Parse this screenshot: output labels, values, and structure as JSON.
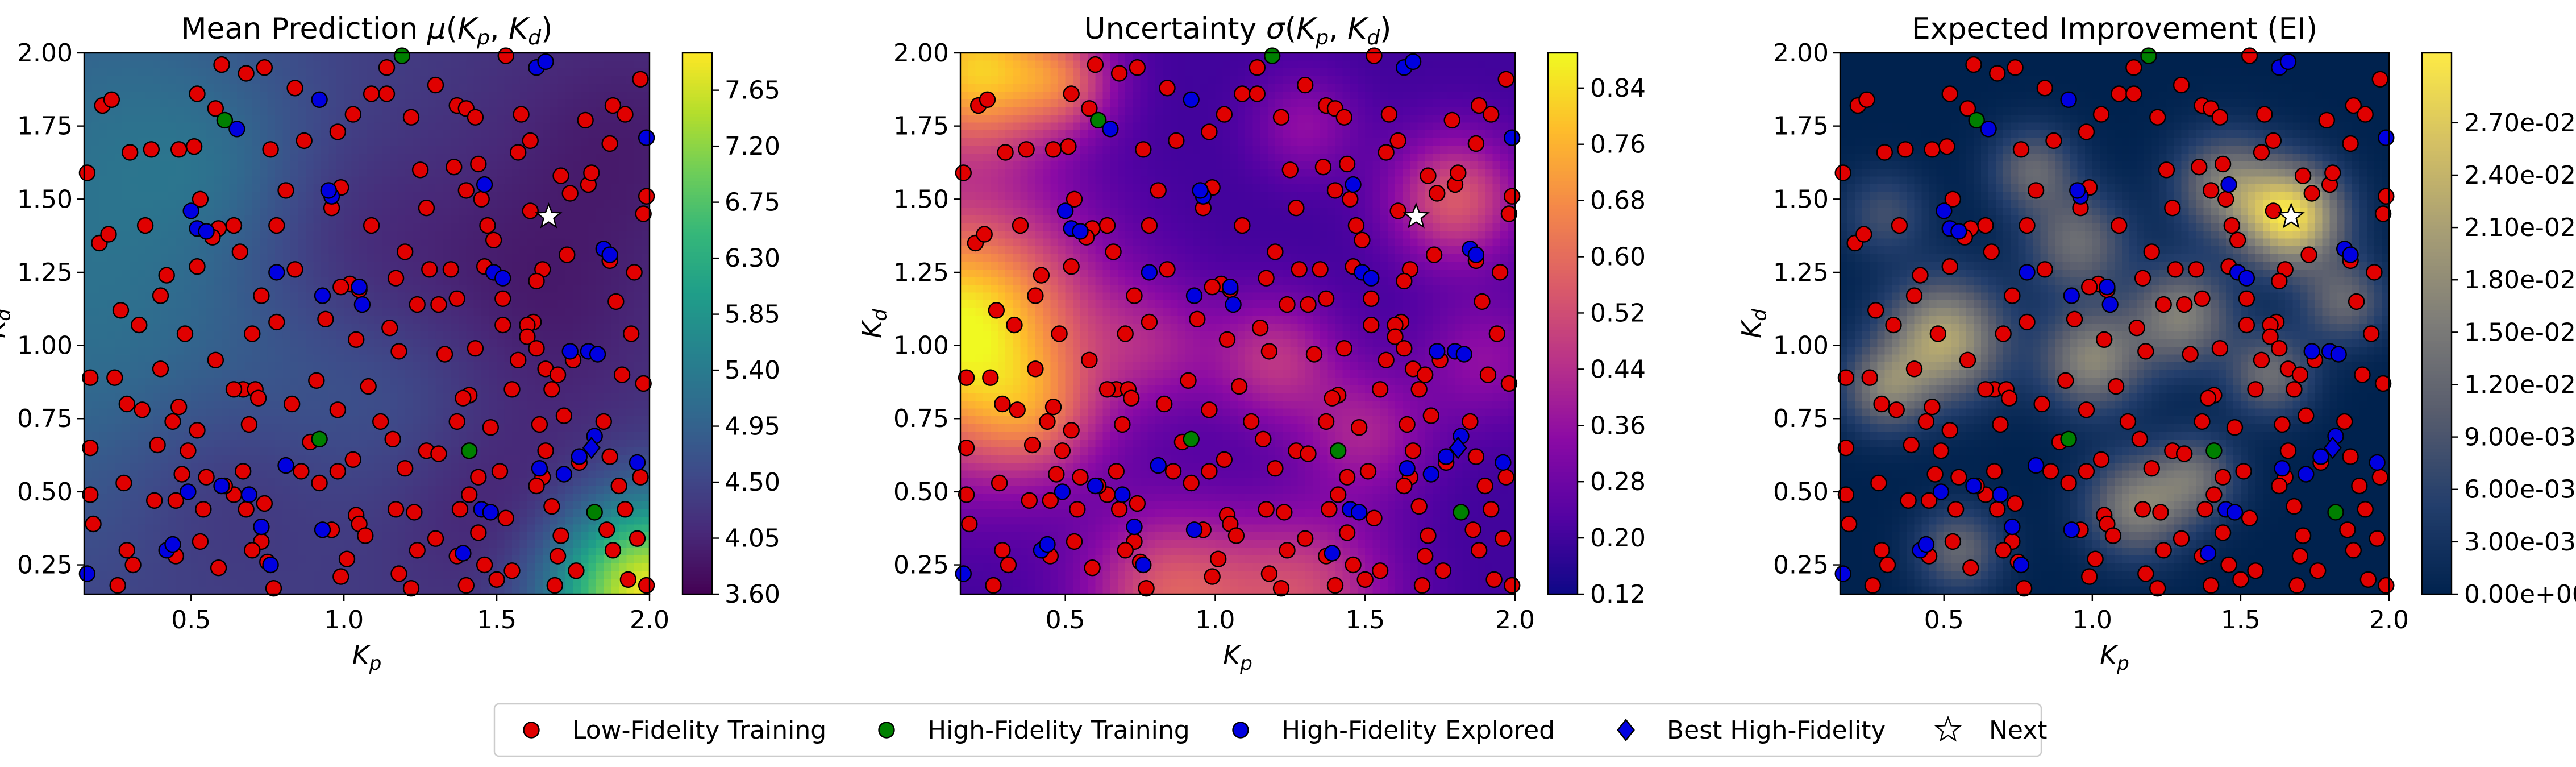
{
  "figure": {
    "legend_placement": "bottom-center"
  },
  "legend": [
    {
      "label": "Low-Fidelity Training",
      "marker": "circle",
      "color": "#e00000"
    },
    {
      "label": "High-Fidelity Training",
      "marker": "circle",
      "color": "#008000"
    },
    {
      "label": "High-Fidelity Explored",
      "marker": "circle",
      "color": "#0000e0"
    },
    {
      "label": "Best High-Fidelity",
      "marker": "diamond",
      "color": "#0000e0"
    },
    {
      "label": "Next",
      "marker": "star",
      "color": "#ffffff"
    }
  ],
  "points": {
    "low_fidelity": [
      [
        0.16,
        1.59
      ],
      [
        0.2,
        1.35
      ],
      [
        0.21,
        1.82
      ],
      [
        0.23,
        1.38
      ],
      [
        0.27,
        1.12
      ],
      [
        0.17,
        0.89
      ],
      [
        0.25,
        0.89
      ],
      [
        0.29,
        0.8
      ],
      [
        0.35,
        1.41
      ],
      [
        0.37,
        1.67
      ],
      [
        0.4,
        1.17
      ],
      [
        0.33,
        1.07
      ],
      [
        0.4,
        0.92
      ],
      [
        0.34,
        0.78
      ],
      [
        0.39,
        0.66
      ],
      [
        0.46,
        0.79
      ],
      [
        0.44,
        0.74
      ],
      [
        0.48,
        1.04
      ],
      [
        0.52,
        1.27
      ],
      [
        0.53,
        1.5
      ],
      [
        0.59,
        1.4
      ],
      [
        0.64,
        1.41
      ],
      [
        0.57,
        1.37
      ],
      [
        0.58,
        0.95
      ],
      [
        0.49,
        0.64
      ],
      [
        0.47,
        0.56
      ],
      [
        0.55,
        0.55
      ],
      [
        0.64,
        0.49
      ],
      [
        0.61,
        0.52
      ],
      [
        0.45,
        0.47
      ],
      [
        0.38,
        0.47
      ],
      [
        0.29,
        0.3
      ],
      [
        0.31,
        0.25
      ],
      [
        0.26,
        0.18
      ],
      [
        0.17,
        0.49
      ],
      [
        0.18,
        0.39
      ],
      [
        0.17,
        0.65
      ],
      [
        0.46,
        1.67
      ],
      [
        0.51,
        1.68
      ],
      [
        0.58,
        1.81
      ],
      [
        0.6,
        1.96
      ],
      [
        0.68,
        1.93
      ],
      [
        0.74,
        1.95
      ],
      [
        0.76,
        1.67
      ],
      [
        0.78,
        1.41
      ],
      [
        0.81,
        1.53
      ],
      [
        0.84,
        1.26
      ],
      [
        0.87,
        1.7
      ],
      [
        0.73,
        1.17
      ],
      [
        0.78,
        1.08
      ],
      [
        0.7,
        1.04
      ],
      [
        0.67,
        0.85
      ],
      [
        0.64,
        0.85
      ],
      [
        0.71,
        0.85
      ],
      [
        0.72,
        0.82
      ],
      [
        0.69,
        0.73
      ],
      [
        0.67,
        0.57
      ],
      [
        0.68,
        0.44
      ],
      [
        0.74,
        0.46
      ],
      [
        0.73,
        0.33
      ],
      [
        0.75,
        0.26
      ],
      [
        0.77,
        0.17
      ],
      [
        0.59,
        0.24
      ],
      [
        0.45,
        0.28
      ],
      [
        0.53,
        0.33
      ],
      [
        0.7,
        0.3
      ],
      [
        0.86,
        0.57
      ],
      [
        0.89,
        0.67
      ],
      [
        0.91,
        0.88
      ],
      [
        0.94,
        1.09
      ],
      [
        0.96,
        1.47
      ],
      [
        0.99,
        1.54
      ],
      [
        1.02,
        1.21
      ],
      [
        1.05,
        1.19
      ],
      [
        1.04,
        1.02
      ],
      [
        1.08,
        0.86
      ],
      [
        0.98,
        0.78
      ],
      [
        1.03,
        0.61
      ],
      [
        0.98,
        0.57
      ],
      [
        0.92,
        0.53
      ],
      [
        0.96,
        0.37
      ],
      [
        1.04,
        0.42
      ],
      [
        1.05,
        0.39
      ],
      [
        1.07,
        0.35
      ],
      [
        1.01,
        0.27
      ],
      [
        0.99,
        0.21
      ],
      [
        0.98,
        1.73
      ],
      [
        1.03,
        1.79
      ],
      [
        1.09,
        1.86
      ],
      [
        1.14,
        1.86
      ],
      [
        1.14,
        1.95
      ],
      [
        1.22,
        1.78
      ],
      [
        1.25,
        1.6
      ],
      [
        1.28,
        1.26
      ],
      [
        1.24,
        1.14
      ],
      [
        1.17,
        1.23
      ],
      [
        1.15,
        1.06
      ],
      [
        1.18,
        0.98
      ],
      [
        1.16,
        0.68
      ],
      [
        1.2,
        0.58
      ],
      [
        1.27,
        0.64
      ],
      [
        1.31,
        0.63
      ],
      [
        1.23,
        0.43
      ],
      [
        1.3,
        0.34
      ],
      [
        1.24,
        0.3
      ],
      [
        1.18,
        0.22
      ],
      [
        1.22,
        0.17
      ],
      [
        1.3,
        1.89
      ],
      [
        1.37,
        1.82
      ],
      [
        1.4,
        1.81
      ],
      [
        1.43,
        1.78
      ],
      [
        1.36,
        1.61
      ],
      [
        1.4,
        1.53
      ],
      [
        1.45,
        1.5
      ],
      [
        1.47,
        1.41
      ],
      [
        1.49,
        1.36
      ],
      [
        1.35,
        1.26
      ],
      [
        1.37,
        1.16
      ],
      [
        1.46,
        1.27
      ],
      [
        1.52,
        1.16
      ],
      [
        1.52,
        1.07
      ],
      [
        1.43,
        0.99
      ],
      [
        1.41,
        0.83
      ],
      [
        1.39,
        0.82
      ],
      [
        1.37,
        0.74
      ],
      [
        1.48,
        0.72
      ],
      [
        1.51,
        0.57
      ],
      [
        1.44,
        0.55
      ],
      [
        1.41,
        0.49
      ],
      [
        1.38,
        0.44
      ],
      [
        1.44,
        0.36
      ],
      [
        1.37,
        0.28
      ],
      [
        1.46,
        0.25
      ],
      [
        1.4,
        0.18
      ],
      [
        1.5,
        0.2
      ],
      [
        1.55,
        0.23
      ],
      [
        1.53,
        1.99
      ],
      [
        1.58,
        1.79
      ],
      [
        1.61,
        1.7
      ],
      [
        1.57,
        1.66
      ],
      [
        1.71,
        1.58
      ],
      [
        1.74,
        1.52
      ],
      [
        1.73,
        1.31
      ],
      [
        1.65,
        1.26
      ],
      [
        1.63,
        1.22
      ],
      [
        1.62,
        1.08
      ],
      [
        1.6,
        1.07
      ],
      [
        1.6,
        1.03
      ],
      [
        1.63,
        0.99
      ],
      [
        1.66,
        0.92
      ],
      [
        1.68,
        0.85
      ],
      [
        1.75,
        0.95
      ],
      [
        1.72,
        0.76
      ],
      [
        1.64,
        0.73
      ],
      [
        1.66,
        0.64
      ],
      [
        1.65,
        0.55
      ],
      [
        1.63,
        0.52
      ],
      [
        1.68,
        0.45
      ],
      [
        1.71,
        0.35
      ],
      [
        1.7,
        0.28
      ],
      [
        1.69,
        0.18
      ],
      [
        1.76,
        0.23
      ],
      [
        1.8,
        1.55
      ],
      [
        1.81,
        1.59
      ],
      [
        1.87,
        1.69
      ],
      [
        1.88,
        1.82
      ],
      [
        1.92,
        1.79
      ],
      [
        1.97,
        1.91
      ],
      [
        1.98,
        1.45
      ],
      [
        1.99,
        1.51
      ],
      [
        1.95,
        1.25
      ],
      [
        1.87,
        1.29
      ],
      [
        1.89,
        1.15
      ],
      [
        1.94,
        1.04
      ],
      [
        1.91,
        0.9
      ],
      [
        1.98,
        0.87
      ],
      [
        1.85,
        0.74
      ],
      [
        1.87,
        0.62
      ],
      [
        1.9,
        0.52
      ],
      [
        1.97,
        0.55
      ],
      [
        1.92,
        0.44
      ],
      [
        1.96,
        0.34
      ],
      [
        1.86,
        0.37
      ],
      [
        1.88,
        0.3
      ],
      [
        1.93,
        0.2
      ],
      [
        1.99,
        0.18
      ],
      [
        0.24,
        1.84
      ],
      [
        0.84,
        1.88
      ],
      [
        1.09,
        1.41
      ],
      [
        1.2,
        1.32
      ],
      [
        1.31,
        1.14
      ],
      [
        1.55,
        0.85
      ],
      [
        1.77,
        0.6
      ],
      [
        1.33,
        0.97
      ],
      [
        1.57,
        0.95
      ],
      [
        1.27,
        1.47
      ],
      [
        0.99,
        1.2
      ],
      [
        0.66,
        1.32
      ],
      [
        0.3,
        1.66
      ],
      [
        0.52,
        1.86
      ],
      [
        1.53,
        0.41
      ],
      [
        0.83,
        0.8
      ],
      [
        1.12,
        0.74
      ],
      [
        0.42,
        1.24
      ],
      [
        1.44,
        1.62
      ],
      [
        1.7,
        0.9
      ],
      [
        0.52,
        0.71
      ],
      [
        1.61,
        1.46
      ],
      [
        0.28,
        0.53
      ],
      [
        0.54,
        0.44
      ],
      [
        1.79,
        1.77
      ],
      [
        1.17,
        0.44
      ]
    ],
    "high_fidelity_training": [
      [
        1.19,
        1.99
      ],
      [
        0.61,
        1.77
      ],
      [
        0.92,
        0.68
      ],
      [
        1.41,
        0.64
      ],
      [
        1.82,
        0.43
      ]
    ],
    "high_fidelity_explored": [
      [
        0.16,
        0.22
      ],
      [
        0.49,
        0.5
      ],
      [
        0.42,
        0.3
      ],
      [
        0.44,
        0.32
      ],
      [
        0.52,
        1.4
      ],
      [
        0.55,
        1.39
      ],
      [
        0.6,
        0.52
      ],
      [
        0.69,
        0.49
      ],
      [
        0.73,
        0.38
      ],
      [
        0.76,
        0.25
      ],
      [
        0.78,
        1.25
      ],
      [
        0.81,
        0.59
      ],
      [
        0.93,
        0.37
      ],
      [
        0.96,
        1.51
      ],
      [
        0.95,
        1.53
      ],
      [
        0.92,
        1.84
      ],
      [
        1.06,
        1.14
      ],
      [
        1.05,
        1.2
      ],
      [
        1.39,
        0.29
      ],
      [
        1.45,
        0.44
      ],
      [
        1.46,
        1.55
      ],
      [
        1.49,
        1.25
      ],
      [
        1.52,
        1.23
      ],
      [
        1.63,
        1.95
      ],
      [
        1.66,
        1.97
      ],
      [
        1.72,
        0.56
      ],
      [
        1.77,
        0.62
      ],
      [
        1.82,
        0.69
      ],
      [
        1.85,
        1.33
      ],
      [
        1.87,
        1.31
      ],
      [
        1.64,
        0.58
      ],
      [
        1.48,
        0.43
      ],
      [
        1.74,
        0.98
      ],
      [
        1.8,
        0.98
      ],
      [
        1.83,
        0.97
      ],
      [
        1.99,
        1.71
      ],
      [
        1.96,
        0.6
      ],
      [
        0.93,
        1.17
      ],
      [
        0.65,
        1.74
      ],
      [
        0.5,
        1.46
      ]
    ],
    "best_high_fidelity": [
      1.81,
      0.65
    ],
    "next": [
      1.67,
      1.44
    ]
  },
  "chart_data": [
    {
      "type": "heatmap",
      "title": "Mean Prediction μ(K_p, K_d)",
      "title_segments": [
        "Mean Prediction ",
        "μ",
        "(",
        "K",
        "p",
        ", ",
        "K",
        "d",
        ")"
      ],
      "xlabel": "K_p",
      "ylabel": "K_d",
      "xlim": [
        0.15,
        2.0
      ],
      "ylim": [
        0.15,
        2.0
      ],
      "xticks": [
        "0.5",
        "1.0",
        "1.5",
        "2.0"
      ],
      "yticks": [
        "0.25",
        "0.50",
        "0.75",
        "1.00",
        "1.25",
        "1.50",
        "1.75",
        "2.00"
      ],
      "colormap": "viridis",
      "colorbar_range": [
        3.6,
        7.95
      ],
      "colorbar_ticks": [
        "3.60",
        "4.05",
        "4.50",
        "4.95",
        "5.40",
        "5.85",
        "6.30",
        "6.75",
        "7.20",
        "7.65"
      ],
      "grid": false,
      "field_model": {
        "base": 4.3,
        "bumps": [
          {
            "x": 0.15,
            "y": 1.1,
            "s": 0.6,
            "a": 0.85
          },
          {
            "x": 0.3,
            "y": 1.9,
            "s": 0.4,
            "a": 0.45
          },
          {
            "x": 2.0,
            "y": 0.15,
            "s": 0.22,
            "a": 3.6
          },
          {
            "x": 1.0,
            "y": 1.3,
            "s": 0.3,
            "a": -0.45
          },
          {
            "x": 1.6,
            "y": 1.1,
            "s": 0.3,
            "a": -0.4
          },
          {
            "x": 0.6,
            "y": 0.55,
            "s": 0.25,
            "a": -0.35
          },
          {
            "x": 1.5,
            "y": 0.45,
            "s": 0.25,
            "a": -0.35
          },
          {
            "x": 1.9,
            "y": 1.7,
            "s": 0.3,
            "a": -0.35
          },
          {
            "x": 0.9,
            "y": 0.95,
            "s": 0.3,
            "a": 0.2
          },
          {
            "x": 1.3,
            "y": 0.85,
            "s": 0.25,
            "a": 0.25
          },
          {
            "x": 0.6,
            "y": 1.6,
            "s": 0.2,
            "a": 0.25
          }
        ]
      }
    },
    {
      "type": "heatmap",
      "title": "Uncertainty σ(K_p, K_d)",
      "title_segments": [
        "Uncertainty ",
        "σ",
        "(",
        "K",
        "p",
        ", ",
        "K",
        "d",
        ")"
      ],
      "xlabel": "K_p",
      "ylabel": "K_d",
      "xlim": [
        0.15,
        2.0
      ],
      "ylim": [
        0.15,
        2.0
      ],
      "xticks": [
        "0.5",
        "1.0",
        "1.5",
        "2.0"
      ],
      "yticks": [
        "0.25",
        "0.50",
        "0.75",
        "1.00",
        "1.25",
        "1.50",
        "1.75",
        "2.00"
      ],
      "colormap": "plasma",
      "colorbar_range": [
        0.12,
        0.89
      ],
      "colorbar_ticks": [
        "0.12",
        "0.20",
        "0.28",
        "0.36",
        "0.44",
        "0.52",
        "0.60",
        "0.68",
        "0.76",
        "0.84"
      ],
      "grid": false,
      "field_model": {
        "base": 0.2,
        "bumps": [
          {
            "x": 0.15,
            "y": 1.05,
            "s": 0.3,
            "a": 0.7
          },
          {
            "x": 0.2,
            "y": 1.95,
            "s": 0.2,
            "a": 0.6
          },
          {
            "x": 0.4,
            "y": 0.75,
            "s": 0.15,
            "a": 0.2
          },
          {
            "x": 0.85,
            "y": 0.15,
            "s": 0.2,
            "a": 0.35
          },
          {
            "x": 1.3,
            "y": 0.15,
            "s": 0.2,
            "a": 0.3
          },
          {
            "x": 1.8,
            "y": 1.5,
            "s": 0.15,
            "a": 0.35
          },
          {
            "x": 1.2,
            "y": 0.95,
            "s": 0.15,
            "a": 0.25
          },
          {
            "x": 0.8,
            "y": 1.0,
            "s": 0.15,
            "a": 0.15
          },
          {
            "x": 1.5,
            "y": 0.7,
            "s": 0.15,
            "a": 0.2
          },
          {
            "x": 1.9,
            "y": 0.95,
            "s": 0.15,
            "a": 0.15
          },
          {
            "x": 0.5,
            "y": 1.9,
            "s": 0.12,
            "a": 0.25
          },
          {
            "x": 1.3,
            "y": 1.75,
            "s": 0.12,
            "a": 0.15
          }
        ]
      }
    },
    {
      "type": "heatmap",
      "title": "Expected Improvement (EI)",
      "xlabel": "K_p",
      "ylabel": "K_d",
      "xlim": [
        0.15,
        2.0
      ],
      "ylim": [
        0.15,
        2.0
      ],
      "xticks": [
        "0.5",
        "1.0",
        "1.5",
        "2.0"
      ],
      "yticks": [
        "0.25",
        "0.50",
        "0.75",
        "1.00",
        "1.25",
        "1.50",
        "1.75",
        "2.00"
      ],
      "colormap": "cividis",
      "colorbar_range": [
        0.0,
        0.031
      ],
      "colorbar_ticks": [
        "0.00e+00",
        "3.00e-03",
        "6.00e-03",
        "9.00e-03",
        "1.20e-02",
        "1.50e-02",
        "1.80e-02",
        "2.10e-02",
        "2.40e-02",
        "2.70e-02"
      ],
      "grid": false,
      "field_model": {
        "base": 0.0,
        "bumps": [
          {
            "x": 1.67,
            "y": 1.44,
            "s": 0.12,
            "a": 0.029
          },
          {
            "x": 0.5,
            "y": 1.02,
            "s": 0.14,
            "a": 0.022
          },
          {
            "x": 0.3,
            "y": 0.85,
            "s": 0.1,
            "a": 0.014
          },
          {
            "x": 1.0,
            "y": 0.95,
            "s": 0.12,
            "a": 0.017
          },
          {
            "x": 0.95,
            "y": 1.35,
            "s": 0.12,
            "a": 0.013
          },
          {
            "x": 1.3,
            "y": 1.1,
            "s": 0.12,
            "a": 0.016
          },
          {
            "x": 1.15,
            "y": 0.45,
            "s": 0.12,
            "a": 0.016
          },
          {
            "x": 1.6,
            "y": 0.9,
            "s": 0.1,
            "a": 0.013
          },
          {
            "x": 0.55,
            "y": 0.3,
            "s": 0.1,
            "a": 0.012
          },
          {
            "x": 1.35,
            "y": 0.55,
            "s": 0.1,
            "a": 0.012
          },
          {
            "x": 1.85,
            "y": 1.15,
            "s": 0.1,
            "a": 0.012
          },
          {
            "x": 1.45,
            "y": 1.55,
            "s": 0.12,
            "a": 0.015
          },
          {
            "x": 0.8,
            "y": 1.6,
            "s": 0.1,
            "a": 0.012
          },
          {
            "x": 0.3,
            "y": 1.45,
            "s": 0.1,
            "a": 0.008
          }
        ]
      }
    }
  ]
}
